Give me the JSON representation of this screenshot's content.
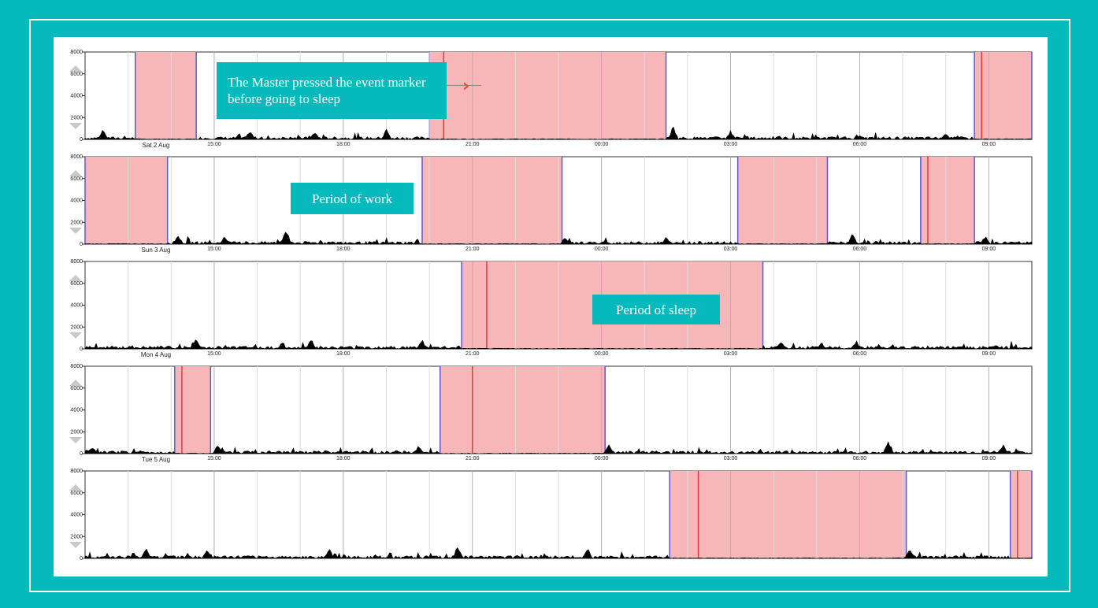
{
  "annotations": {
    "marker": "The Master pressed the event marker before going to sleep",
    "work": "Period of work",
    "sleep": "Period of sleep"
  },
  "colors": {
    "frame": "#06b9bd",
    "shade": "#f7b7b9",
    "blue_line": "#5a5ad2",
    "red_line": "#e53935",
    "activity": "#000000",
    "arrow": "#e2501f"
  },
  "chart_data": [
    {
      "type": "area",
      "title": "",
      "xlabel": "",
      "ylabel": "",
      "ylim": [
        0,
        8000
      ],
      "yticks": [
        0,
        2000,
        4000,
        6000,
        8000
      ],
      "xlim": [
        "12:00",
        "10:00"
      ],
      "xticks": [
        "15:00",
        "18:00",
        "21:00",
        "00:00",
        "03:00",
        "06:00",
        "09:00"
      ],
      "day_label": "Sat 2 Aug",
      "grid": true,
      "sleep_periods": [
        [
          "13:10",
          "14:35"
        ],
        [
          "20:00",
          "01:30"
        ],
        [
          "08:40",
          "10:00"
        ]
      ],
      "event_markers": [
        "20:20",
        "08:50"
      ],
      "activity_peaks": [
        [
          "12:25",
          1200
        ],
        [
          "15:50",
          900
        ],
        [
          "17:20",
          800
        ],
        [
          "19:00",
          1000
        ],
        [
          "01:40",
          1400
        ],
        [
          "03:00",
          900
        ],
        [
          "08:00",
          800
        ]
      ]
    },
    {
      "type": "area",
      "title": "",
      "xlabel": "",
      "ylabel": "",
      "ylim": [
        0,
        8000
      ],
      "yticks": [
        0,
        2000,
        4000,
        6000,
        8000
      ],
      "xlim": [
        "12:00",
        "10:00"
      ],
      "xticks": [
        "15:00",
        "18:00",
        "21:00",
        "00:00",
        "03:00",
        "06:00",
        "09:00"
      ],
      "day_label": "Sun 3 Aug",
      "grid": true,
      "sleep_periods": [
        [
          "12:00",
          "13:55"
        ],
        [
          "19:50",
          "23:05"
        ],
        [
          "03:10",
          "05:15"
        ],
        [
          "07:25",
          "08:40"
        ]
      ],
      "event_markers": [
        "07:35"
      ],
      "activity_peaks": [
        [
          "14:10",
          1000
        ],
        [
          "15:15",
          900
        ],
        [
          "16:40",
          1600
        ],
        [
          "23:10",
          700
        ],
        [
          "01:30",
          700
        ],
        [
          "05:50",
          1000
        ],
        [
          "08:55",
          800
        ]
      ]
    },
    {
      "type": "area",
      "title": "",
      "xlabel": "",
      "ylabel": "",
      "ylim": [
        0,
        8000
      ],
      "yticks": [
        0,
        2000,
        4000,
        6000,
        8000
      ],
      "xlim": [
        "12:00",
        "10:00"
      ],
      "xticks": [
        "15:00",
        "18:00",
        "21:00",
        "00:00",
        "03:00",
        "06:00",
        "09:00"
      ],
      "day_label": "Mon 4 Aug",
      "grid": true,
      "sleep_periods": [
        [
          "20:45",
          "03:45"
        ]
      ],
      "event_markers": [
        "21:20"
      ],
      "activity_peaks": [
        [
          "14:35",
          1000
        ],
        [
          "17:15",
          1100
        ],
        [
          "19:50",
          900
        ],
        [
          "04:10",
          900
        ],
        [
          "05:55",
          900
        ],
        [
          "09:10",
          400
        ]
      ]
    },
    {
      "type": "area",
      "title": "",
      "xlabel": "",
      "ylabel": "",
      "ylim": [
        0,
        8000
      ],
      "yticks": [
        0,
        2000,
        4000,
        6000,
        8000
      ],
      "xlim": [
        "12:00",
        "10:00"
      ],
      "xticks": [
        "15:00",
        "18:00",
        "21:00",
        "00:00",
        "03:00",
        "06:00",
        "09:00"
      ],
      "day_label": "Tue 5 Aug",
      "grid": true,
      "sleep_periods": [
        [
          "14:05",
          "14:55"
        ],
        [
          "20:15",
          "00:05"
        ]
      ],
      "event_markers": [
        "14:15",
        "21:00"
      ],
      "activity_peaks": [
        [
          "12:10",
          800
        ],
        [
          "15:05",
          900
        ],
        [
          "19:45",
          900
        ],
        [
          "00:10",
          900
        ],
        [
          "06:40",
          1500
        ],
        [
          "09:20",
          900
        ]
      ]
    },
    {
      "type": "area",
      "title": "",
      "xlabel": "",
      "ylabel": "",
      "ylim": [
        0,
        8000
      ],
      "yticks": [
        0,
        2000,
        4000,
        6000,
        8000
      ],
      "xlim": [
        "12:00",
        "10:00"
      ],
      "xticks": [],
      "day_label": "",
      "grid": true,
      "sleep_periods": [
        [
          "01:35",
          "07:05"
        ],
        [
          "09:30",
          "10:00"
        ]
      ],
      "event_markers": [
        "02:15",
        "09:40"
      ],
      "activity_peaks": [
        [
          "13:25",
          1200
        ],
        [
          "14:50",
          1000
        ],
        [
          "17:40",
          1000
        ],
        [
          "20:40",
          1400
        ],
        [
          "23:40",
          1100
        ],
        [
          "07:10",
          1000
        ]
      ]
    }
  ]
}
